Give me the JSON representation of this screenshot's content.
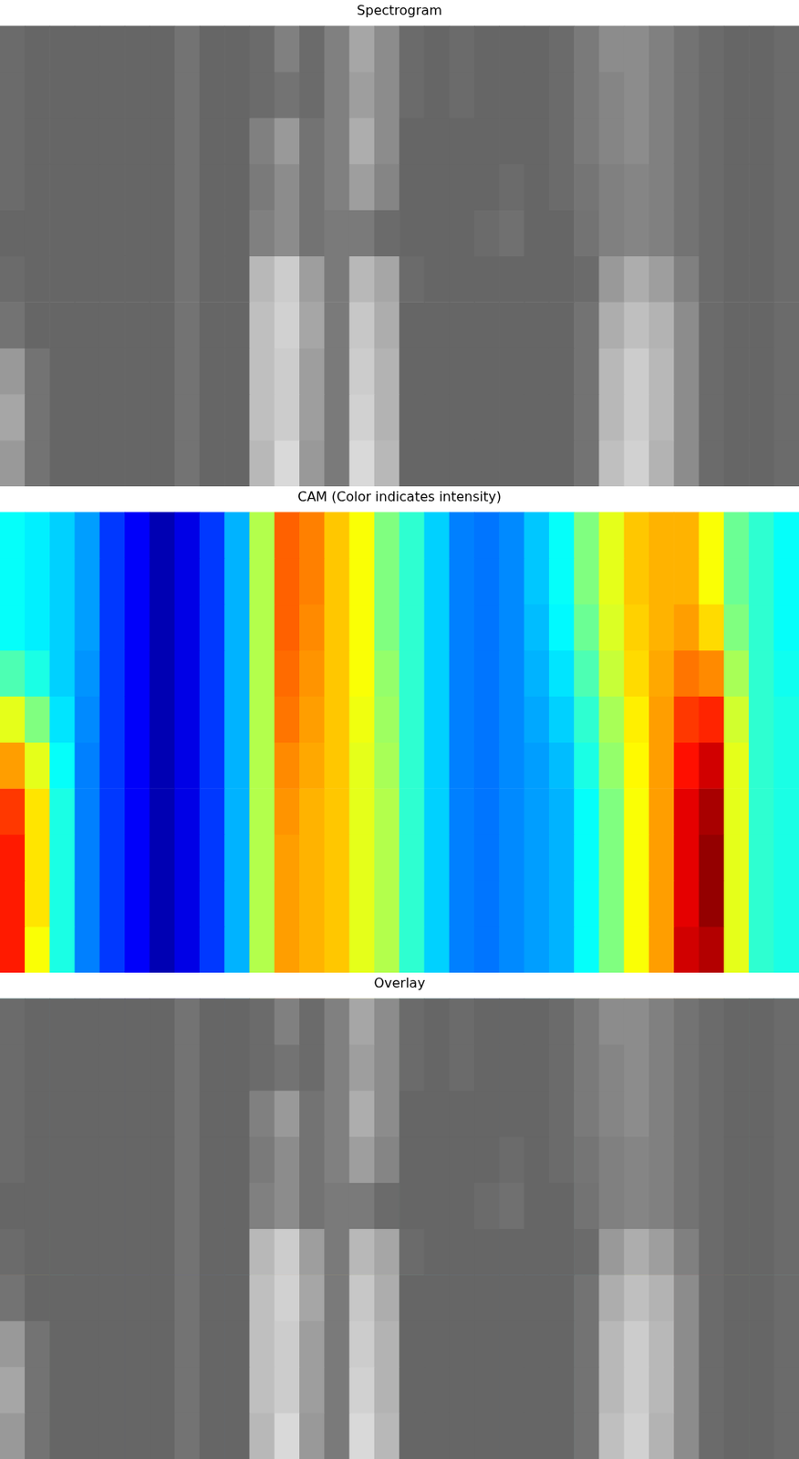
{
  "chart_data": [
    {
      "type": "heatmap",
      "title": "Spectrogram",
      "color": "gray",
      "tick_labels": false,
      "cells": [
        [
          0.42,
          0.4,
          0.4,
          0.4,
          0.4,
          0.4,
          0.4,
          0.45,
          0.4,
          0.4,
          0.42,
          0.5,
          0.42,
          0.5,
          0.65,
          0.55,
          0.42,
          0.4,
          0.42,
          0.4,
          0.4,
          0.4,
          0.42,
          0.48,
          0.55,
          0.55,
          0.5,
          0.45,
          0.42,
          0.4,
          0.4,
          0.42
        ],
        [
          0.42,
          0.4,
          0.4,
          0.4,
          0.4,
          0.4,
          0.4,
          0.45,
          0.4,
          0.4,
          0.42,
          0.45,
          0.42,
          0.5,
          0.62,
          0.55,
          0.42,
          0.4,
          0.42,
          0.4,
          0.4,
          0.4,
          0.42,
          0.48,
          0.52,
          0.55,
          0.5,
          0.45,
          0.42,
          0.4,
          0.4,
          0.42
        ],
        [
          0.42,
          0.4,
          0.4,
          0.4,
          0.4,
          0.4,
          0.4,
          0.45,
          0.4,
          0.4,
          0.5,
          0.6,
          0.45,
          0.5,
          0.68,
          0.55,
          0.4,
          0.4,
          0.4,
          0.4,
          0.4,
          0.4,
          0.42,
          0.48,
          0.52,
          0.55,
          0.5,
          0.45,
          0.42,
          0.4,
          0.4,
          0.42
        ],
        [
          0.42,
          0.4,
          0.4,
          0.4,
          0.4,
          0.4,
          0.4,
          0.45,
          0.4,
          0.4,
          0.48,
          0.55,
          0.45,
          0.5,
          0.62,
          0.52,
          0.4,
          0.4,
          0.4,
          0.4,
          0.42,
          0.4,
          0.42,
          0.46,
          0.5,
          0.52,
          0.5,
          0.45,
          0.42,
          0.4,
          0.4,
          0.42
        ],
        [
          0.4,
          0.4,
          0.4,
          0.4,
          0.4,
          0.4,
          0.4,
          0.45,
          0.4,
          0.4,
          0.5,
          0.55,
          0.45,
          0.48,
          0.48,
          0.42,
          0.4,
          0.4,
          0.4,
          0.42,
          0.44,
          0.4,
          0.4,
          0.45,
          0.5,
          0.52,
          0.5,
          0.45,
          0.42,
          0.4,
          0.4,
          0.42
        ],
        [
          0.42,
          0.4,
          0.4,
          0.4,
          0.4,
          0.4,
          0.4,
          0.45,
          0.4,
          0.4,
          0.72,
          0.8,
          0.62,
          0.48,
          0.72,
          0.65,
          0.42,
          0.4,
          0.4,
          0.4,
          0.4,
          0.4,
          0.4,
          0.42,
          0.6,
          0.68,
          0.62,
          0.5,
          0.42,
          0.4,
          0.4,
          0.42
        ],
        [
          0.45,
          0.4,
          0.4,
          0.4,
          0.4,
          0.4,
          0.4,
          0.45,
          0.4,
          0.4,
          0.75,
          0.82,
          0.65,
          0.48,
          0.78,
          0.68,
          0.4,
          0.4,
          0.4,
          0.4,
          0.4,
          0.4,
          0.4,
          0.45,
          0.68,
          0.75,
          0.7,
          0.55,
          0.42,
          0.4,
          0.4,
          0.42
        ],
        [
          0.6,
          0.45,
          0.4,
          0.4,
          0.4,
          0.4,
          0.4,
          0.45,
          0.4,
          0.4,
          0.75,
          0.8,
          0.62,
          0.48,
          0.8,
          0.7,
          0.4,
          0.4,
          0.4,
          0.4,
          0.4,
          0.4,
          0.4,
          0.45,
          0.72,
          0.8,
          0.72,
          0.55,
          0.42,
          0.4,
          0.4,
          0.42
        ],
        [
          0.65,
          0.45,
          0.4,
          0.4,
          0.4,
          0.4,
          0.4,
          0.45,
          0.4,
          0.4,
          0.75,
          0.8,
          0.62,
          0.48,
          0.82,
          0.7,
          0.4,
          0.4,
          0.4,
          0.4,
          0.4,
          0.4,
          0.4,
          0.45,
          0.72,
          0.8,
          0.72,
          0.55,
          0.42,
          0.4,
          0.4,
          0.42
        ],
        [
          0.6,
          0.45,
          0.4,
          0.4,
          0.4,
          0.4,
          0.4,
          0.45,
          0.4,
          0.4,
          0.72,
          0.85,
          0.6,
          0.48,
          0.85,
          0.72,
          0.4,
          0.4,
          0.4,
          0.4,
          0.4,
          0.4,
          0.4,
          0.45,
          0.75,
          0.82,
          0.7,
          0.55,
          0.42,
          0.4,
          0.4,
          0.42
        ]
      ]
    },
    {
      "type": "heatmap",
      "title": "CAM (Color indicates intensity)",
      "color": "jet",
      "tick_labels": false,
      "cells": [
        [
          0.38,
          0.36,
          0.33,
          0.28,
          0.18,
          0.12,
          0.05,
          0.1,
          0.18,
          0.3,
          0.55,
          0.78,
          0.75,
          0.68,
          0.62,
          0.5,
          0.42,
          0.33,
          0.25,
          0.24,
          0.26,
          0.32,
          0.38,
          0.5,
          0.6,
          0.68,
          0.7,
          0.7,
          0.62,
          0.48,
          0.42,
          0.38
        ],
        [
          0.38,
          0.36,
          0.33,
          0.28,
          0.18,
          0.12,
          0.05,
          0.1,
          0.18,
          0.3,
          0.55,
          0.78,
          0.75,
          0.68,
          0.62,
          0.5,
          0.42,
          0.33,
          0.25,
          0.24,
          0.26,
          0.32,
          0.38,
          0.5,
          0.6,
          0.68,
          0.7,
          0.7,
          0.62,
          0.48,
          0.42,
          0.38
        ],
        [
          0.38,
          0.36,
          0.33,
          0.28,
          0.18,
          0.12,
          0.05,
          0.1,
          0.18,
          0.3,
          0.55,
          0.78,
          0.74,
          0.68,
          0.62,
          0.5,
          0.42,
          0.33,
          0.25,
          0.24,
          0.26,
          0.31,
          0.37,
          0.48,
          0.59,
          0.67,
          0.7,
          0.72,
          0.66,
          0.5,
          0.42,
          0.38
        ],
        [
          0.45,
          0.4,
          0.33,
          0.27,
          0.18,
          0.12,
          0.05,
          0.1,
          0.18,
          0.3,
          0.55,
          0.77,
          0.73,
          0.68,
          0.62,
          0.52,
          0.42,
          0.33,
          0.25,
          0.24,
          0.26,
          0.3,
          0.35,
          0.45,
          0.57,
          0.66,
          0.71,
          0.76,
          0.74,
          0.54,
          0.42,
          0.39
        ],
        [
          0.6,
          0.5,
          0.35,
          0.26,
          0.18,
          0.12,
          0.05,
          0.1,
          0.18,
          0.3,
          0.55,
          0.76,
          0.72,
          0.68,
          0.61,
          0.53,
          0.42,
          0.33,
          0.25,
          0.24,
          0.26,
          0.29,
          0.33,
          0.42,
          0.54,
          0.64,
          0.72,
          0.82,
          0.84,
          0.58,
          0.42,
          0.4
        ],
        [
          0.72,
          0.6,
          0.38,
          0.25,
          0.18,
          0.12,
          0.05,
          0.1,
          0.18,
          0.3,
          0.55,
          0.74,
          0.71,
          0.68,
          0.6,
          0.54,
          0.42,
          0.33,
          0.25,
          0.24,
          0.26,
          0.28,
          0.31,
          0.4,
          0.52,
          0.63,
          0.72,
          0.86,
          0.92,
          0.6,
          0.42,
          0.4
        ],
        [
          0.82,
          0.65,
          0.4,
          0.25,
          0.18,
          0.12,
          0.05,
          0.1,
          0.18,
          0.3,
          0.55,
          0.73,
          0.7,
          0.68,
          0.6,
          0.55,
          0.42,
          0.33,
          0.25,
          0.24,
          0.26,
          0.28,
          0.3,
          0.38,
          0.5,
          0.62,
          0.72,
          0.9,
          0.96,
          0.6,
          0.42,
          0.4
        ],
        [
          0.85,
          0.65,
          0.4,
          0.25,
          0.18,
          0.12,
          0.05,
          0.1,
          0.18,
          0.3,
          0.55,
          0.72,
          0.7,
          0.68,
          0.6,
          0.55,
          0.42,
          0.33,
          0.25,
          0.24,
          0.26,
          0.28,
          0.3,
          0.38,
          0.5,
          0.62,
          0.72,
          0.9,
          0.98,
          0.6,
          0.42,
          0.4
        ],
        [
          0.85,
          0.65,
          0.4,
          0.25,
          0.18,
          0.12,
          0.05,
          0.1,
          0.18,
          0.3,
          0.55,
          0.72,
          0.7,
          0.68,
          0.6,
          0.55,
          0.42,
          0.33,
          0.25,
          0.24,
          0.26,
          0.28,
          0.3,
          0.38,
          0.5,
          0.62,
          0.72,
          0.9,
          0.98,
          0.6,
          0.42,
          0.4
        ],
        [
          0.85,
          0.62,
          0.4,
          0.25,
          0.18,
          0.12,
          0.05,
          0.1,
          0.18,
          0.3,
          0.55,
          0.72,
          0.7,
          0.68,
          0.6,
          0.55,
          0.42,
          0.33,
          0.25,
          0.24,
          0.26,
          0.28,
          0.3,
          0.38,
          0.5,
          0.62,
          0.72,
          0.92,
          0.95,
          0.6,
          0.42,
          0.4
        ]
      ]
    },
    {
      "type": "overlay",
      "title": "Overlay",
      "tick_labels": false
    }
  ]
}
